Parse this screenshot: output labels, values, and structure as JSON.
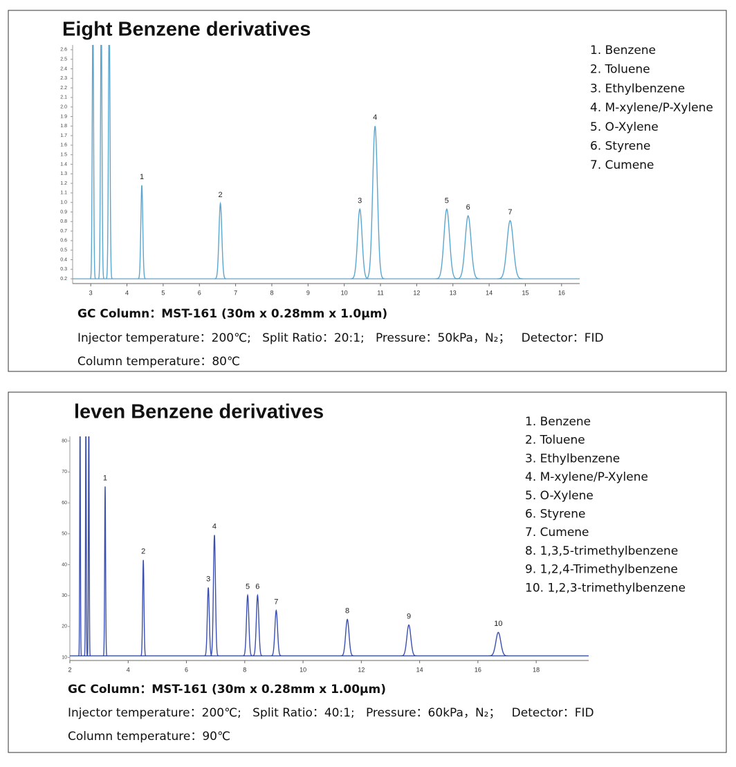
{
  "chart_data": [
    {
      "type": "chromatogram",
      "title": "Eight Benzene derivatives",
      "color": "#5aa6cf",
      "legend": [
        "1. Benzene",
        "2. Toluene",
        "3. Ethylbenzene",
        "4. M-xylene/P-Xylene",
        "5. O-Xylene",
        "6. Styrene",
        "7. Cumene"
      ],
      "baseline": 0.2,
      "peaks": [
        {
          "x": 3.06,
          "height": 3.0,
          "label": null
        },
        {
          "x": 3.29,
          "height": 3.0,
          "label": null
        },
        {
          "x": 3.51,
          "height": 3.0,
          "label": null
        },
        {
          "x": 4.41,
          "height": 1.18,
          "label": "1"
        },
        {
          "x": 6.58,
          "height": 0.99,
          "label": "2"
        },
        {
          "x": 10.43,
          "height": 0.93,
          "label": "3"
        },
        {
          "x": 10.85,
          "height": 1.8,
          "label": "4"
        },
        {
          "x": 12.83,
          "height": 0.93,
          "label": "5"
        },
        {
          "x": 13.42,
          "height": 0.86,
          "label": "6"
        },
        {
          "x": 14.58,
          "height": 0.81,
          "label": "7"
        }
      ],
      "xlim": [
        2.5,
        16.5
      ],
      "xticks": [
        3,
        4,
        5,
        6,
        7,
        8,
        9,
        10,
        11,
        12,
        13,
        14,
        15,
        16
      ],
      "ylim": [
        0.15,
        2.65
      ],
      "yticks": [
        0.2,
        0.3,
        0.4,
        0.5,
        0.6,
        0.7,
        0.8,
        0.9,
        {
          "value": 1,
          "label": "1.0"
        },
        1.1,
        1.2,
        1.3,
        1.4,
        1.5,
        1.6,
        1.7,
        1.8,
        1.9,
        {
          "value": 2,
          "label": "2.0"
        },
        2.1,
        2.2,
        2.3,
        2.4,
        2.5,
        2.6
      ],
      "notes": [
        "GC Column：MST-161 (30m x 0.28mm x 1.0μm)",
        "Injector temperature：200℃;   Split Ratio：20:1;   Pressure：50kPa，N₂；   Detector：FID",
        "Column temperature：80℃"
      ]
    },
    {
      "type": "chromatogram",
      "title": "leven Benzene derivatives",
      "color": "#3a4fb0",
      "legend": [
        "1. Benzene",
        "2. Toluene",
        "3. Ethylbenzene",
        "4. M-xylene/P-Xylene",
        "5. O-Xylene",
        "6. Styrene",
        "7. Cumene",
        "8. 1,3,5-trimethylbenzene",
        "9. 1,2,4-Trimethylbenzene",
        "10. 1,2,3-trimethylbenzene"
      ],
      "baseline": 10.5,
      "peaks": [
        {
          "x": 2.35,
          "height": 90,
          "label": null
        },
        {
          "x": 2.55,
          "height": 90,
          "label": null
        },
        {
          "x": 2.65,
          "height": 90,
          "label": null
        },
        {
          "x": 3.21,
          "height": 65.3,
          "label": "1"
        },
        {
          "x": 4.52,
          "height": 41.5,
          "label": "2"
        },
        {
          "x": 6.75,
          "height": 32.6,
          "label": "3"
        },
        {
          "x": 6.96,
          "height": 49.6,
          "label": "4"
        },
        {
          "x": 8.1,
          "height": 30.1,
          "label": "5"
        },
        {
          "x": 8.44,
          "height": 30.1,
          "label": "6"
        },
        {
          "x": 9.08,
          "height": 25.2,
          "label": "7"
        },
        {
          "x": 11.52,
          "height": 22.3,
          "label": "8"
        },
        {
          "x": 13.63,
          "height": 20.5,
          "label": "9"
        },
        {
          "x": 16.7,
          "height": 18.1,
          "label": "10"
        }
      ],
      "xlim": [
        2,
        19.8
      ],
      "xticks": [
        2,
        4,
        6,
        8,
        10,
        12,
        14,
        16,
        18
      ],
      "ylim": [
        9,
        81.5
      ],
      "yticks": [
        10,
        20,
        30,
        40,
        50,
        60,
        70,
        80
      ],
      "notes": [
        "GC Column：MST-161 (30m x 0.28mm x 1.00μm)",
        "Injector temperature：200℃;   Split Ratio：40:1;   Pressure：60kPa，N₂；   Detector：FID",
        "Column temperature：90℃"
      ]
    }
  ]
}
